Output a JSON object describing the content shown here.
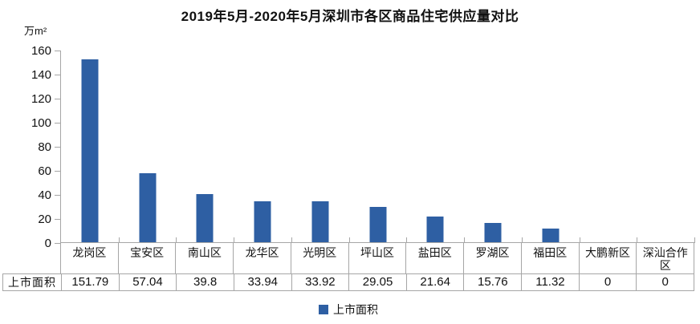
{
  "title": "2019年5月-2020年5月深圳市各区商品住宅供应量对比",
  "y_unit_label": "万m²",
  "colors": {
    "bar": "#2e5fa3",
    "axis": "#a6a6a6",
    "text": "#111111"
  },
  "chart_data": {
    "type": "bar",
    "title": "2019年5月-2020年5月深圳市各区商品住宅供应量对比",
    "ylabel": "万m²",
    "xlabel": "",
    "categories": [
      "龙岗区",
      "宝安区",
      "南山区",
      "龙华区",
      "光明区",
      "坪山区",
      "盐田区",
      "罗湖区",
      "福田区",
      "大鹏新区",
      "深汕合作区"
    ],
    "series": [
      {
        "name": "上市面积",
        "values": [
          151.79,
          57.04,
          39.8,
          33.94,
          33.92,
          29.05,
          21.64,
          15.76,
          11.32,
          0,
          0
        ]
      }
    ],
    "ylim": [
      0,
      160
    ],
    "yticks": [
      0,
      20,
      40,
      60,
      80,
      100,
      120,
      140,
      160
    ],
    "grid": false,
    "legend_position": "bottom"
  },
  "table": {
    "row_header": "上市面积",
    "display_values": [
      "151.79",
      "57.04",
      "39.8",
      "33.94",
      "33.92",
      "29.05",
      "21.64",
      "15.76",
      "11.32",
      "0",
      "0"
    ]
  },
  "legend": {
    "label": "上市面积"
  }
}
